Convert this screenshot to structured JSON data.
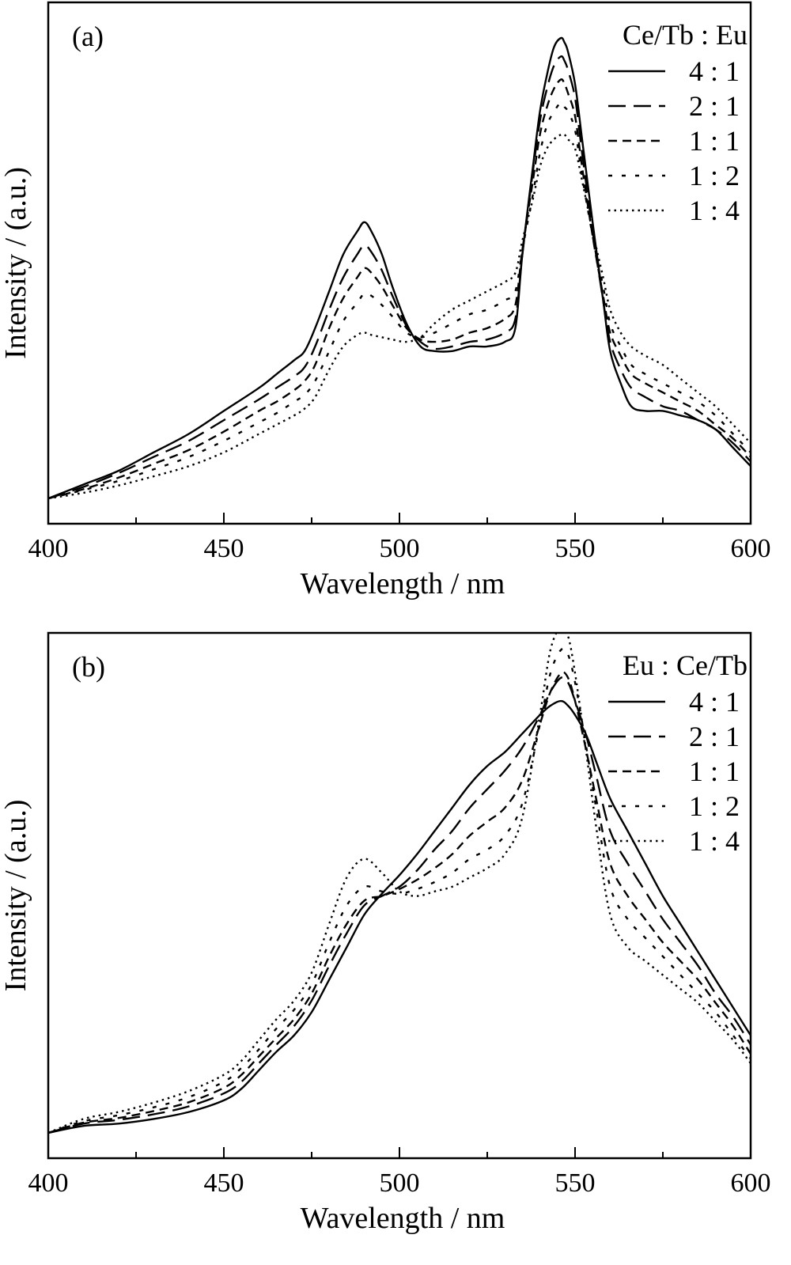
{
  "chart_data": [
    {
      "type": "line",
      "panel_label": "(a)",
      "xlabel": "Wavelength / nm",
      "ylabel": "Intensity / (a.u.)",
      "xlim": [
        400,
        600
      ],
      "ylim": [
        0,
        1.05
      ],
      "x_ticks": [
        "400",
        "450",
        "500",
        "550",
        "600"
      ],
      "grid": false,
      "legend_title": "Ce/Tb : Eu",
      "legend_position": "top-right",
      "series": [
        {
          "name": "4 : 1",
          "style": "solid",
          "x": [
            400,
            410,
            420,
            430,
            440,
            450,
            460,
            465,
            470,
            473,
            476,
            480,
            484,
            488,
            490,
            492,
            495,
            498,
            502,
            506,
            510,
            515,
            520,
            525,
            530,
            533,
            535,
            538,
            540,
            542,
            544,
            546,
            547,
            548,
            550,
            552,
            555,
            558,
            560,
            563,
            566,
            570,
            575,
            580,
            585,
            590,
            595,
            600
          ],
          "y": [
            0.0,
            0.03,
            0.06,
            0.1,
            0.14,
            0.19,
            0.24,
            0.27,
            0.3,
            0.32,
            0.37,
            0.45,
            0.53,
            0.58,
            0.6,
            0.58,
            0.53,
            0.46,
            0.38,
            0.33,
            0.32,
            0.32,
            0.33,
            0.33,
            0.34,
            0.37,
            0.53,
            0.72,
            0.84,
            0.92,
            0.98,
            1.0,
            0.99,
            0.97,
            0.9,
            0.78,
            0.6,
            0.43,
            0.32,
            0.25,
            0.2,
            0.19,
            0.19,
            0.18,
            0.17,
            0.15,
            0.11,
            0.07
          ]
        },
        {
          "name": "2 : 1",
          "style": "dash",
          "x": [
            400,
            410,
            420,
            430,
            440,
            450,
            460,
            465,
            470,
            473,
            476,
            480,
            484,
            488,
            490,
            492,
            495,
            498,
            502,
            506,
            510,
            515,
            520,
            525,
            530,
            533,
            535,
            538,
            540,
            542,
            544,
            546,
            547,
            548,
            550,
            552,
            555,
            558,
            560,
            563,
            566,
            570,
            575,
            580,
            585,
            590,
            595,
            600
          ],
          "y": [
            0.0,
            0.025,
            0.055,
            0.09,
            0.125,
            0.17,
            0.215,
            0.24,
            0.265,
            0.285,
            0.33,
            0.41,
            0.48,
            0.53,
            0.55,
            0.535,
            0.495,
            0.44,
            0.375,
            0.34,
            0.325,
            0.33,
            0.34,
            0.345,
            0.36,
            0.39,
            0.53,
            0.71,
            0.82,
            0.89,
            0.94,
            0.96,
            0.95,
            0.93,
            0.87,
            0.75,
            0.58,
            0.43,
            0.34,
            0.28,
            0.24,
            0.22,
            0.2,
            0.19,
            0.17,
            0.15,
            0.12,
            0.08
          ]
        },
        {
          "name": "1 : 1",
          "style": "short-dash",
          "x": [
            400,
            410,
            420,
            430,
            440,
            450,
            460,
            465,
            470,
            473,
            476,
            480,
            484,
            488,
            490,
            492,
            495,
            498,
            502,
            506,
            510,
            515,
            520,
            525,
            530,
            533,
            535,
            538,
            540,
            542,
            544,
            546,
            547,
            548,
            550,
            552,
            555,
            558,
            560,
            563,
            566,
            570,
            575,
            580,
            585,
            590,
            595,
            600
          ],
          "y": [
            0.0,
            0.02,
            0.045,
            0.075,
            0.105,
            0.145,
            0.19,
            0.21,
            0.235,
            0.255,
            0.29,
            0.37,
            0.435,
            0.48,
            0.5,
            0.49,
            0.46,
            0.42,
            0.37,
            0.345,
            0.34,
            0.345,
            0.36,
            0.37,
            0.39,
            0.42,
            0.54,
            0.69,
            0.79,
            0.85,
            0.89,
            0.91,
            0.9,
            0.88,
            0.83,
            0.72,
            0.57,
            0.44,
            0.36,
            0.31,
            0.27,
            0.25,
            0.23,
            0.21,
            0.19,
            0.16,
            0.13,
            0.09
          ]
        },
        {
          "name": "1 : 2",
          "style": "dot-dash",
          "x": [
            400,
            410,
            420,
            430,
            440,
            450,
            460,
            465,
            470,
            473,
            476,
            480,
            484,
            488,
            490,
            492,
            495,
            498,
            502,
            506,
            510,
            515,
            520,
            525,
            530,
            533,
            535,
            538,
            540,
            542,
            544,
            546,
            547,
            548,
            550,
            552,
            555,
            558,
            560,
            563,
            566,
            570,
            575,
            580,
            585,
            590,
            595,
            600
          ],
          "y": [
            0.0,
            0.018,
            0.038,
            0.063,
            0.09,
            0.125,
            0.165,
            0.185,
            0.21,
            0.225,
            0.255,
            0.32,
            0.385,
            0.425,
            0.445,
            0.44,
            0.42,
            0.395,
            0.36,
            0.35,
            0.36,
            0.38,
            0.4,
            0.41,
            0.43,
            0.45,
            0.54,
            0.66,
            0.75,
            0.81,
            0.84,
            0.86,
            0.85,
            0.84,
            0.8,
            0.7,
            0.57,
            0.46,
            0.38,
            0.33,
            0.29,
            0.27,
            0.25,
            0.23,
            0.21,
            0.18,
            0.14,
            0.1
          ]
        },
        {
          "name": "1 : 4",
          "style": "dotted",
          "x": [
            400,
            410,
            420,
            430,
            440,
            450,
            460,
            465,
            470,
            473,
            476,
            480,
            484,
            488,
            490,
            492,
            495,
            498,
            502,
            506,
            510,
            515,
            520,
            525,
            530,
            533,
            535,
            538,
            540,
            542,
            544,
            546,
            547,
            548,
            550,
            552,
            555,
            558,
            560,
            563,
            566,
            570,
            575,
            580,
            585,
            590,
            595,
            600
          ],
          "y": [
            0.0,
            0.012,
            0.028,
            0.048,
            0.07,
            0.1,
            0.14,
            0.16,
            0.18,
            0.195,
            0.22,
            0.28,
            0.33,
            0.355,
            0.36,
            0.355,
            0.35,
            0.345,
            0.34,
            0.35,
            0.38,
            0.41,
            0.43,
            0.45,
            0.47,
            0.49,
            0.56,
            0.65,
            0.72,
            0.76,
            0.78,
            0.79,
            0.79,
            0.78,
            0.76,
            0.69,
            0.58,
            0.48,
            0.41,
            0.36,
            0.33,
            0.31,
            0.29,
            0.26,
            0.23,
            0.2,
            0.16,
            0.12
          ]
        }
      ]
    },
    {
      "type": "line",
      "panel_label": "(b)",
      "xlabel": "Wavelength / nm",
      "ylabel": "Intensity / (a.u.)",
      "xlim": [
        400,
        600
      ],
      "ylim": [
        0,
        1.05
      ],
      "x_ticks": [
        "400",
        "450",
        "500",
        "550",
        "600"
      ],
      "grid": false,
      "legend_title": "Eu : Ce/Tb",
      "legend_position": "top-right",
      "series": [
        {
          "name": "4 : 1",
          "style": "solid",
          "x": [
            400,
            410,
            420,
            430,
            440,
            450,
            455,
            460,
            465,
            470,
            475,
            480,
            485,
            490,
            495,
            500,
            505,
            510,
            515,
            520,
            525,
            530,
            535,
            540,
            543,
            546,
            548,
            550,
            553,
            556,
            560,
            565,
            570,
            575,
            580,
            585,
            590,
            595,
            600
          ],
          "y": [
            0.0,
            0.015,
            0.02,
            0.03,
            0.045,
            0.07,
            0.095,
            0.135,
            0.175,
            0.21,
            0.26,
            0.33,
            0.4,
            0.47,
            0.515,
            0.555,
            0.6,
            0.65,
            0.7,
            0.75,
            0.79,
            0.82,
            0.86,
            0.9,
            0.92,
            0.93,
            0.92,
            0.9,
            0.86,
            0.8,
            0.72,
            0.65,
            0.58,
            0.51,
            0.45,
            0.39,
            0.33,
            0.27,
            0.21
          ]
        },
        {
          "name": "2 : 1",
          "style": "dash",
          "x": [
            400,
            410,
            420,
            430,
            440,
            450,
            455,
            460,
            465,
            470,
            475,
            480,
            485,
            490,
            495,
            500,
            505,
            510,
            515,
            520,
            525,
            530,
            535,
            540,
            543,
            546,
            548,
            550,
            553,
            556,
            560,
            565,
            570,
            575,
            580,
            585,
            590,
            595,
            600
          ],
          "y": [
            0.0,
            0.02,
            0.028,
            0.04,
            0.057,
            0.085,
            0.11,
            0.15,
            0.19,
            0.23,
            0.285,
            0.36,
            0.43,
            0.49,
            0.51,
            0.53,
            0.565,
            0.61,
            0.65,
            0.7,
            0.74,
            0.78,
            0.83,
            0.9,
            0.95,
            0.98,
            0.97,
            0.93,
            0.86,
            0.77,
            0.65,
            0.58,
            0.52,
            0.46,
            0.41,
            0.36,
            0.3,
            0.25,
            0.19
          ]
        },
        {
          "name": "1 : 1",
          "style": "short-dash",
          "x": [
            400,
            410,
            420,
            430,
            440,
            450,
            455,
            460,
            465,
            470,
            475,
            480,
            485,
            490,
            495,
            500,
            505,
            510,
            515,
            520,
            525,
            530,
            535,
            540,
            543,
            546,
            548,
            550,
            553,
            556,
            560,
            565,
            570,
            575,
            580,
            585,
            590,
            595,
            600
          ],
          "y": [
            0.0,
            0.022,
            0.032,
            0.047,
            0.066,
            0.097,
            0.125,
            0.165,
            0.205,
            0.245,
            0.3,
            0.38,
            0.45,
            0.5,
            0.51,
            0.525,
            0.545,
            0.57,
            0.6,
            0.64,
            0.67,
            0.7,
            0.76,
            0.88,
            0.95,
            0.99,
            0.98,
            0.93,
            0.83,
            0.72,
            0.58,
            0.51,
            0.46,
            0.41,
            0.37,
            0.33,
            0.28,
            0.23,
            0.17
          ]
        },
        {
          "name": "1 : 2",
          "style": "dot-dash",
          "x": [
            400,
            410,
            420,
            430,
            440,
            450,
            455,
            460,
            465,
            470,
            475,
            480,
            485,
            490,
            495,
            500,
            505,
            510,
            515,
            520,
            525,
            530,
            535,
            540,
            543,
            546,
            548,
            550,
            553,
            556,
            560,
            565,
            570,
            575,
            580,
            585,
            590,
            595,
            600
          ],
          "y": [
            0.0,
            0.025,
            0.038,
            0.055,
            0.077,
            0.11,
            0.14,
            0.18,
            0.225,
            0.265,
            0.32,
            0.41,
            0.49,
            0.53,
            0.52,
            0.515,
            0.525,
            0.54,
            0.56,
            0.59,
            0.61,
            0.64,
            0.71,
            0.88,
            0.99,
            1.04,
            1.03,
            0.97,
            0.84,
            0.7,
            0.53,
            0.46,
            0.42,
            0.38,
            0.34,
            0.3,
            0.26,
            0.21,
            0.16
          ]
        },
        {
          "name": "1 : 4",
          "style": "dotted",
          "x": [
            400,
            410,
            420,
            430,
            440,
            450,
            455,
            460,
            465,
            470,
            475,
            480,
            485,
            490,
            495,
            500,
            505,
            510,
            515,
            520,
            525,
            530,
            535,
            540,
            543,
            546,
            548,
            550,
            553,
            556,
            560,
            565,
            570,
            575,
            580,
            585,
            590,
            595,
            600
          ],
          "y": [
            0.0,
            0.03,
            0.045,
            0.065,
            0.09,
            0.125,
            0.155,
            0.2,
            0.245,
            0.285,
            0.345,
            0.45,
            0.55,
            0.59,
            0.56,
            0.52,
            0.51,
            0.52,
            0.53,
            0.55,
            0.57,
            0.6,
            0.68,
            0.9,
            1.04,
            1.09,
            1.07,
            0.99,
            0.83,
            0.66,
            0.47,
            0.4,
            0.37,
            0.34,
            0.31,
            0.28,
            0.24,
            0.2,
            0.15
          ]
        }
      ]
    }
  ]
}
